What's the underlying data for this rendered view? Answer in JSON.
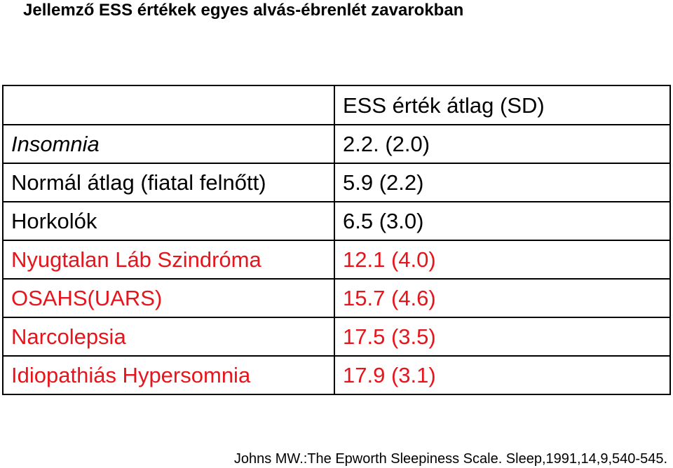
{
  "header": {
    "title": "Jellemző ESS értékek egyes alvás-ébrenlét zavarokban"
  },
  "table": {
    "column_header": "ESS érték átlag (SD)",
    "rows": [
      [
        "Insomnia",
        "2.2. (2.0)"
      ],
      [
        "Normál átlag (fiatal felnőtt)",
        "5.9 (2.2)"
      ],
      [
        "Horkolók",
        "6.5 (3.0)"
      ],
      [
        "Nyugtalan Láb Szindróma",
        "12.1 (4.0)"
      ],
      [
        "OSAHS(UARS)",
        "15.7 (4.6)"
      ],
      [
        "Narcolepsia",
        "17.5 (3.5)"
      ],
      [
        "Idiopathiás Hypersomnia",
        "17.9 (3.1)"
      ]
    ]
  },
  "footer": {
    "citation": "Johns MW.:The Epworth Sleepiness Scale. Sleep,1991,14,9,540-545."
  }
}
